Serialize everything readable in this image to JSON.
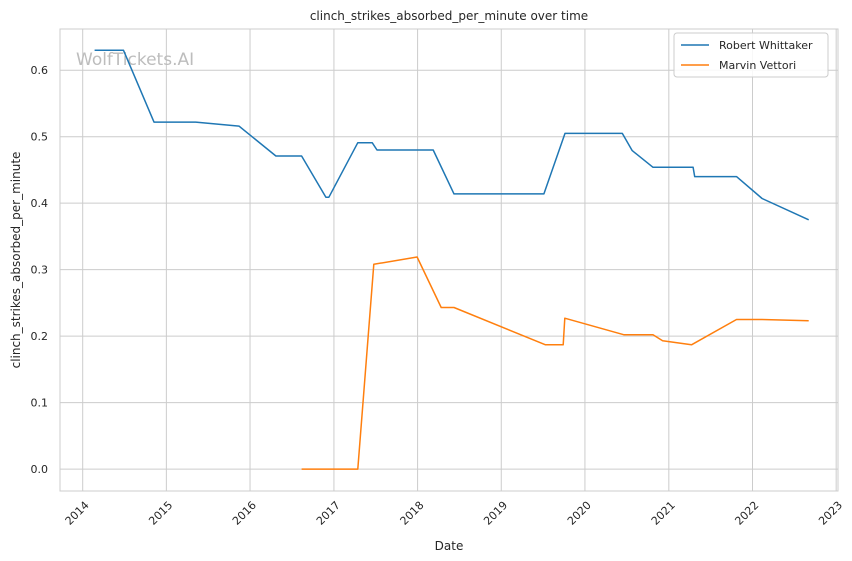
{
  "watermark": "WolfTickets.AI",
  "chart_data": {
    "type": "line",
    "title": "clinch_strikes_absorbed_per_minute over time",
    "xlabel": "Date",
    "ylabel": "clinch_strikes_absorbed_per_minute",
    "x_ticks": [
      "2014",
      "2015",
      "2016",
      "2017",
      "2018",
      "2019",
      "2020",
      "2021",
      "2022",
      "2023"
    ],
    "y_ticks": [
      "0.0",
      "0.1",
      "0.2",
      "0.3",
      "0.4",
      "0.5",
      "0.6"
    ],
    "xlim": [
      "2013-09-24",
      "2023-01-09"
    ],
    "ylim": [
      -0.033,
      0.662
    ],
    "grid": true,
    "legend_position": "top-right",
    "series": [
      {
        "name": "Robert Whittaker",
        "color": "#1f77b4",
        "points": [
          [
            "2014-02-22",
            0.63
          ],
          [
            "2014-06-28",
            0.63
          ],
          [
            "2014-11-08",
            0.522
          ],
          [
            "2015-05-09",
            0.522
          ],
          [
            "2015-11-14",
            0.516
          ],
          [
            "2016-04-23",
            0.471
          ],
          [
            "2016-08-13",
            0.471
          ],
          [
            "2016-11-27",
            0.409
          ],
          [
            "2016-12-10",
            0.409
          ],
          [
            "2017-04-15",
            0.491
          ],
          [
            "2017-06-17",
            0.491
          ],
          [
            "2017-07-08",
            0.48
          ],
          [
            "2018-03-10",
            0.48
          ],
          [
            "2018-06-09",
            0.414
          ],
          [
            "2019-07-06",
            0.414
          ],
          [
            "2019-10-06",
            0.505
          ],
          [
            "2020-06-12",
            0.505
          ],
          [
            "2020-07-25",
            0.479
          ],
          [
            "2020-10-24",
            0.454
          ],
          [
            "2021-04-17",
            0.454
          ],
          [
            "2021-04-24",
            0.44
          ],
          [
            "2021-10-23",
            0.44
          ],
          [
            "2022-02-12",
            0.407
          ],
          [
            "2022-09-03",
            0.375
          ]
        ]
      },
      {
        "name": "Marvin Vettori",
        "color": "#ff7f0e",
        "points": [
          [
            "2016-08-13",
            0.0
          ],
          [
            "2017-04-15",
            0.0
          ],
          [
            "2017-06-24",
            0.308
          ],
          [
            "2017-12-30",
            0.319
          ],
          [
            "2018-04-14",
            0.243
          ],
          [
            "2018-06-09",
            0.243
          ],
          [
            "2019-07-13",
            0.187
          ],
          [
            "2019-09-28",
            0.187
          ],
          [
            "2019-10-05",
            0.227
          ],
          [
            "2020-06-20",
            0.202
          ],
          [
            "2020-10-24",
            0.202
          ],
          [
            "2020-12-05",
            0.193
          ],
          [
            "2021-04-10",
            0.187
          ],
          [
            "2021-10-23",
            0.225
          ],
          [
            "2022-02-12",
            0.225
          ],
          [
            "2022-09-03",
            0.223
          ]
        ]
      }
    ]
  }
}
